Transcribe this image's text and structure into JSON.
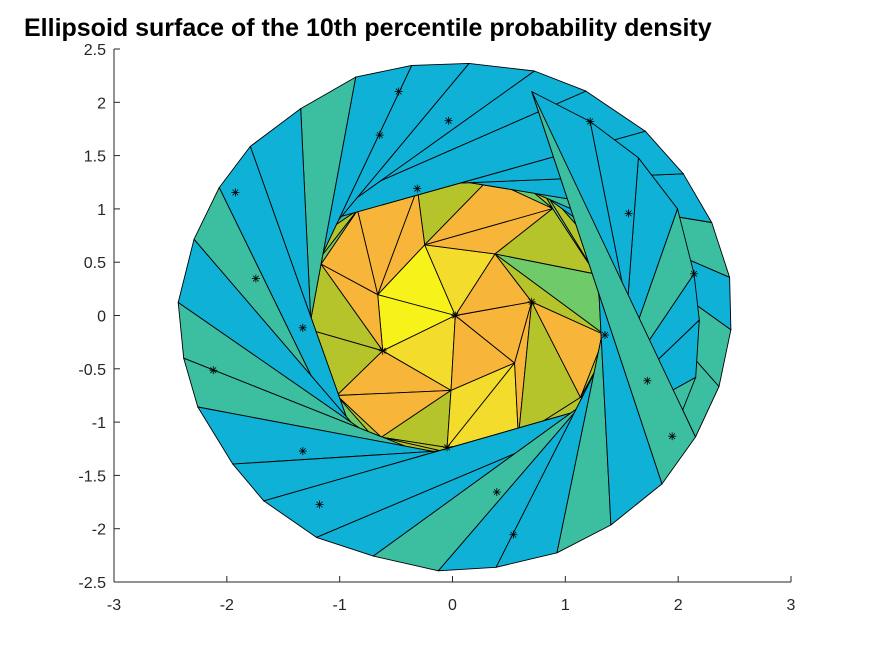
{
  "chart_data": {
    "type": "surface",
    "title": "Ellipsoid surface of the 10th percentile probability density",
    "xlabel": "",
    "ylabel": "",
    "xlim": [
      -3,
      3
    ],
    "ylim": [
      -2.5,
      2.5
    ],
    "x_ticks": [
      -3,
      -2,
      -1,
      0,
      1,
      2,
      3
    ],
    "x_tick_labels": [
      "-3",
      "-2",
      "-1",
      "0",
      "1",
      "2",
      "3"
    ],
    "y_ticks": [
      2.5,
      2,
      1.5,
      1,
      0.5,
      0,
      -0.5,
      -1,
      -1.5,
      -2,
      -2.5
    ],
    "y_tick_labels": [
      "2.5",
      "2",
      "1.5",
      "1",
      "0.5",
      "0",
      "-0.5",
      "-1",
      "-1.5",
      "-2",
      "-2.5"
    ],
    "grid": false,
    "surface": {
      "shape": "triangulated ellipsoid (viewed along axis)",
      "center": [
        0,
        0
      ],
      "x_extent": [
        -2.5,
        2.55
      ],
      "y_extent": [
        -2.45,
        2.45
      ],
      "colormap": [
        "#0fb1d6",
        "#3cbfa0",
        "#6fcb6a",
        "#b6c42c",
        "#f7b53a",
        "#f4dc2c",
        "#f7f219"
      ],
      "edge_color": "#000000"
    }
  }
}
